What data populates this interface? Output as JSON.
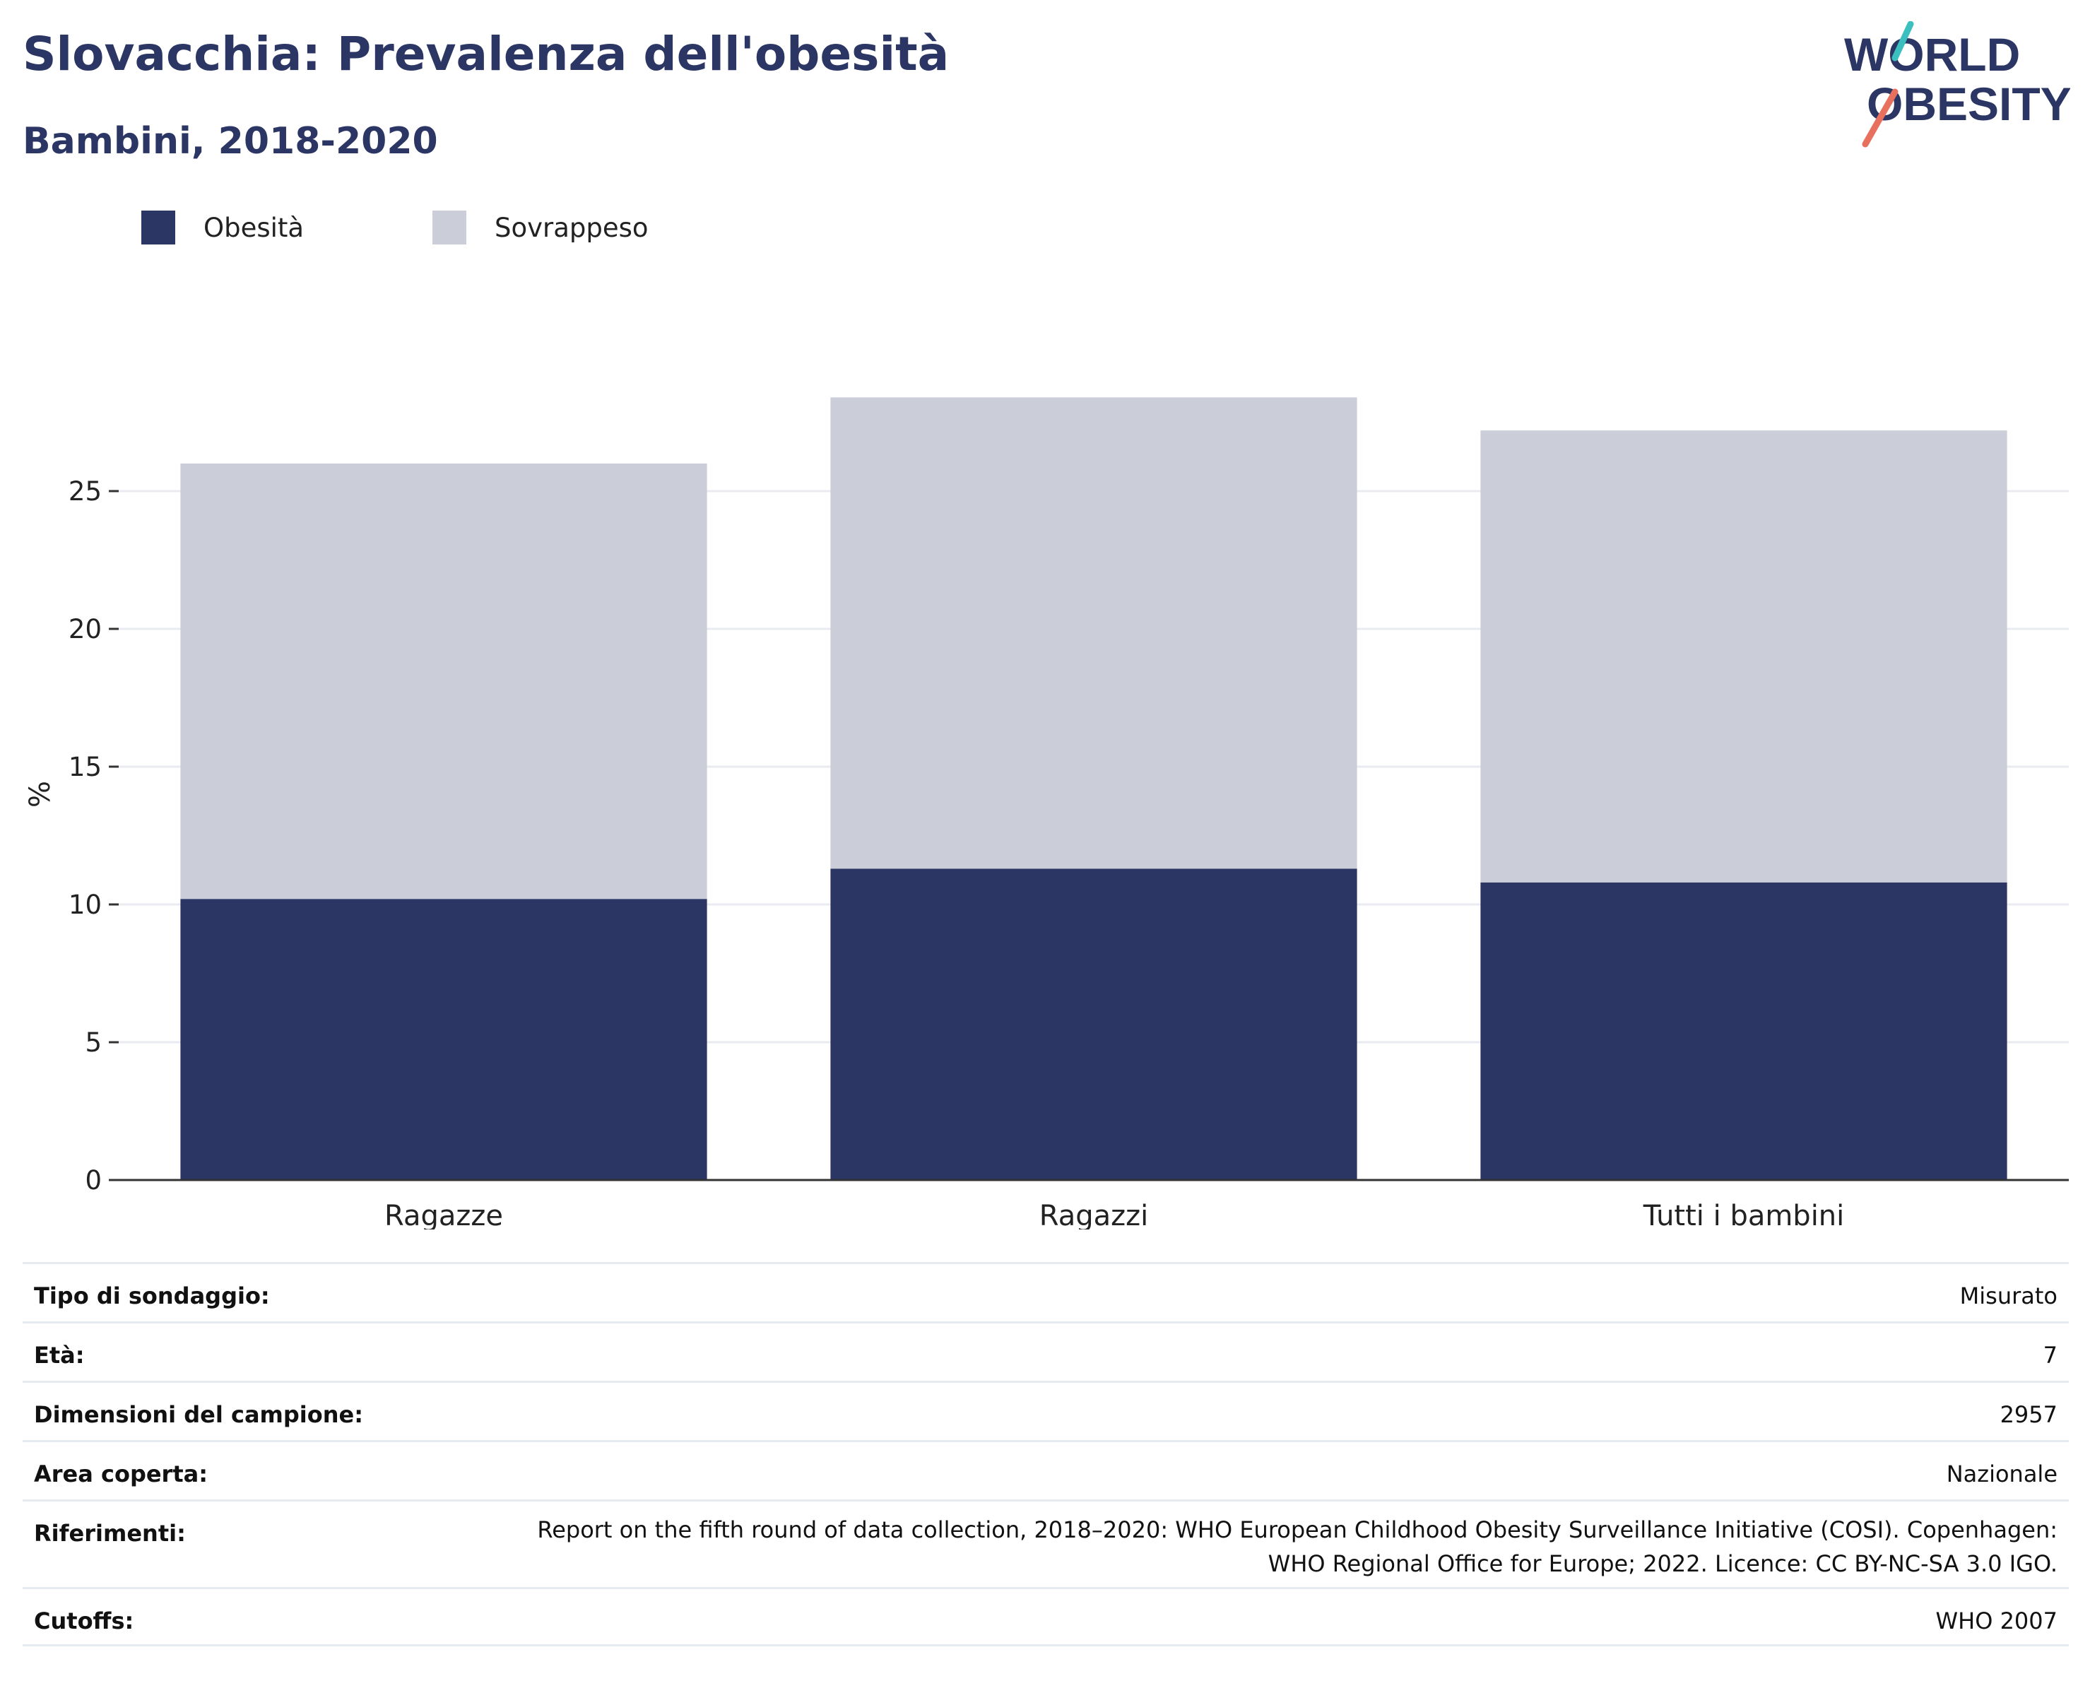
{
  "header": {
    "title": "Slovacchia: Prevalenza dell'obesità",
    "subtitle": "Bambini, 2018-2020"
  },
  "logo": {
    "line1": "WORLD",
    "line2": "OBESITY",
    "accent_teal": "#3bbfbf",
    "accent_coral": "#e8705f"
  },
  "chart_data": {
    "type": "bar",
    "stacked": true,
    "categories": [
      "Ragazze",
      "Ragazzi",
      "Tutti i bambini"
    ],
    "series": [
      {
        "name": "Obesità",
        "color": "#2b3664",
        "values": [
          10.2,
          11.3,
          10.8
        ]
      },
      {
        "name": "Sovrappeso",
        "color": "#cbcdd8",
        "values": [
          15.8,
          17.1,
          16.4
        ]
      }
    ],
    "ylabel": "%",
    "ylim": [
      0,
      28
    ],
    "yticks": [
      "0",
      "5",
      "10",
      "15",
      "20",
      "25"
    ],
    "grid": true,
    "legend": "top-left"
  },
  "info": {
    "rows": [
      {
        "label": "Tipo di sondaggio:",
        "value": "Misurato"
      },
      {
        "label": "Età:",
        "value": "7"
      },
      {
        "label": "Dimensioni del campione:",
        "value": "2957"
      },
      {
        "label": "Area coperta:",
        "value": "Nazionale"
      },
      {
        "label": "Riferimenti:",
        "value_lines": [
          "Report on the fifth round of data collection, 2018–2020: WHO European Childhood Obesity Surveillance Initiative (COSI). Copenhagen:",
          "WHO Regional Office for Europe; 2022. Licence: CC BY-NC-SA 3.0 IGO."
        ]
      },
      {
        "label": "Cutoffs:",
        "value": "WHO 2007"
      }
    ]
  }
}
